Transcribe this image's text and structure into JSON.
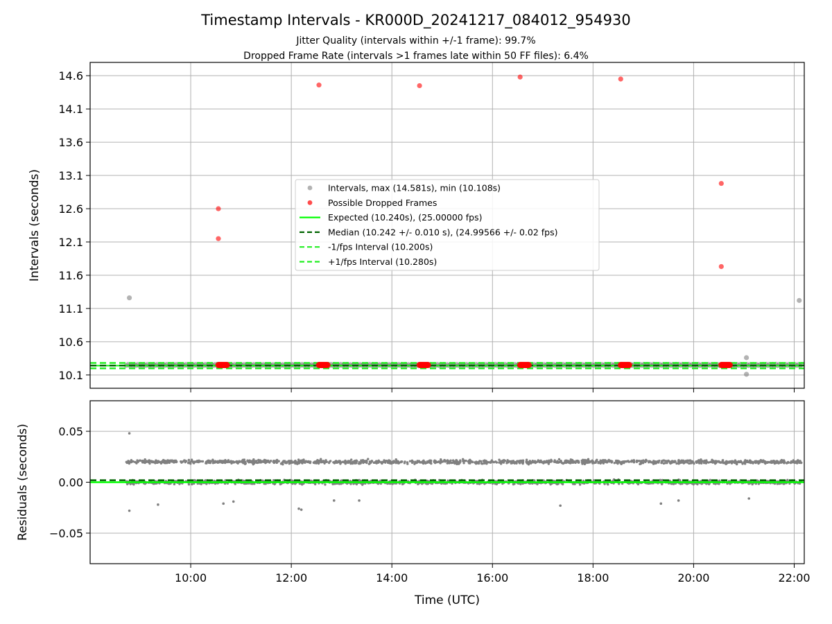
{
  "figure": {
    "title": "Timestamp Intervals - KR000D_20241217_084012_954930",
    "subtitle_jitter": "Jitter Quality (intervals within +/-1 frame): 99.7%",
    "subtitle_dropped": "Dropped Frame Rate (intervals >1 frames late within 50 FF files): 6.4%",
    "xlabel": "Time (UTC)"
  },
  "colors": {
    "intervals": "#808080",
    "dropped": "#ff0000",
    "expected": "#00ff00",
    "median": "#006400",
    "band": "#22ee22",
    "grid": "#b0b0b0",
    "axes": "#000000"
  },
  "chart_data": [
    {
      "type": "scatter",
      "panel": "intervals",
      "ylabel": "Intervals (seconds)",
      "xlim": [
        8.0,
        22.2
      ],
      "ylim": [
        9.9,
        14.8
      ],
      "yticks": [
        10.1,
        10.6,
        11.1,
        11.6,
        12.1,
        12.6,
        13.1,
        13.6,
        14.1,
        14.6
      ],
      "ytick_labels": [
        "10.1",
        "10.6",
        "11.1",
        "11.6",
        "12.1",
        "12.6",
        "13.1",
        "13.6",
        "14.1",
        "14.6"
      ],
      "xticks": [
        10,
        12,
        14,
        16,
        18,
        20,
        22
      ],
      "xtick_labels": [
        "10:00",
        "12:00",
        "14:00",
        "16:00",
        "18:00",
        "20:00",
        "22:00"
      ],
      "grid": true,
      "legend": {
        "position": "center",
        "entries": [
          "Intervals, max (14.581s), min (10.108s)",
          "Possible Dropped Frames",
          "Expected (10.240s), (25.00000 fps)",
          "Median (10.242 +/- 0.010 s), (24.99566 +/- 0.02 fps)",
          "-1/fps Interval (10.200s)",
          "+1/fps Interval (10.280s)"
        ]
      },
      "series": [
        {
          "name": "Intervals, max (14.581s), min (10.108s)",
          "kind": "points",
          "x_range": [
            8.72,
            22.15
          ],
          "band_values": [
            10.24,
            10.26
          ],
          "outliers": [
            {
              "x": 8.78,
              "y": 11.26
            },
            {
              "x": 21.05,
              "y": 10.36
            },
            {
              "x": 21.05,
              "y": 10.11
            },
            {
              "x": 22.1,
              "y": 11.22
            }
          ]
        },
        {
          "name": "Possible Dropped Frames",
          "kind": "points",
          "points": [
            {
              "x": 10.55,
              "y": 12.6
            },
            {
              "x": 10.55,
              "y": 12.15
            },
            {
              "x": 12.55,
              "y": 14.46
            },
            {
              "x": 14.55,
              "y": 14.45
            },
            {
              "x": 16.55,
              "y": 14.58
            },
            {
              "x": 18.55,
              "y": 14.55
            },
            {
              "x": 20.55,
              "y": 12.98
            },
            {
              "x": 20.55,
              "y": 11.73
            }
          ],
          "clusters": [
            {
              "x_start": 10.55,
              "x_end": 10.72,
              "y": 10.25
            },
            {
              "x_start": 12.55,
              "x_end": 12.72,
              "y": 10.25
            },
            {
              "x_start": 14.55,
              "x_end": 14.72,
              "y": 10.25
            },
            {
              "x_start": 16.55,
              "x_end": 16.72,
              "y": 10.25
            },
            {
              "x_start": 18.55,
              "x_end": 18.72,
              "y": 10.25
            },
            {
              "x_start": 20.55,
              "x_end": 20.72,
              "y": 10.25
            }
          ]
        },
        {
          "name": "Expected (10.240s), (25.00000 fps)",
          "kind": "hline",
          "y": 10.24,
          "style": "solid"
        },
        {
          "name": "Median (10.242 +/- 0.010 s), (24.99566 +/- 0.02 fps)",
          "kind": "hline",
          "y": 10.242,
          "style": "dashed"
        },
        {
          "name": "-1/fps Interval (10.200s)",
          "kind": "hline",
          "y": 10.2,
          "style": "dashed"
        },
        {
          "name": "+1/fps Interval (10.280s)",
          "kind": "hline",
          "y": 10.28,
          "style": "dashed"
        }
      ]
    },
    {
      "type": "scatter",
      "panel": "residuals",
      "ylabel": "Residuals (seconds)",
      "xlabel": "Time (UTC)",
      "xlim": [
        8.0,
        22.2
      ],
      "ylim": [
        -0.08,
        0.08
      ],
      "yticks": [
        0.05,
        0.0,
        -0.05
      ],
      "ytick_labels": [
        "0.05",
        "0.00",
        "−0.05"
      ],
      "xticks": [
        10,
        12,
        14,
        16,
        18,
        20,
        22
      ],
      "xtick_labels": [
        "10:00",
        "12:00",
        "14:00",
        "16:00",
        "18:00",
        "20:00",
        "22:00"
      ],
      "grid": true,
      "series": [
        {
          "kind": "points",
          "x_range": [
            8.72,
            22.15
          ],
          "bands": [
            0.0,
            0.02
          ],
          "outliers": [
            {
              "x": 8.78,
              "y": 0.048
            },
            {
              "x": 8.78,
              "y": -0.028
            },
            {
              "x": 9.35,
              "y": -0.022
            },
            {
              "x": 10.65,
              "y": -0.021
            },
            {
              "x": 10.85,
              "y": -0.019
            },
            {
              "x": 12.15,
              "y": -0.026
            },
            {
              "x": 12.2,
              "y": -0.027
            },
            {
              "x": 12.85,
              "y": -0.018
            },
            {
              "x": 13.35,
              "y": -0.018
            },
            {
              "x": 17.35,
              "y": -0.023
            },
            {
              "x": 19.35,
              "y": -0.021
            },
            {
              "x": 19.7,
              "y": -0.018
            },
            {
              "x": 21.1,
              "y": -0.016
            }
          ]
        },
        {
          "kind": "hline",
          "y": 0.0,
          "style": "solid"
        },
        {
          "kind": "hline",
          "y": 0.002,
          "style": "dashed"
        }
      ]
    }
  ]
}
